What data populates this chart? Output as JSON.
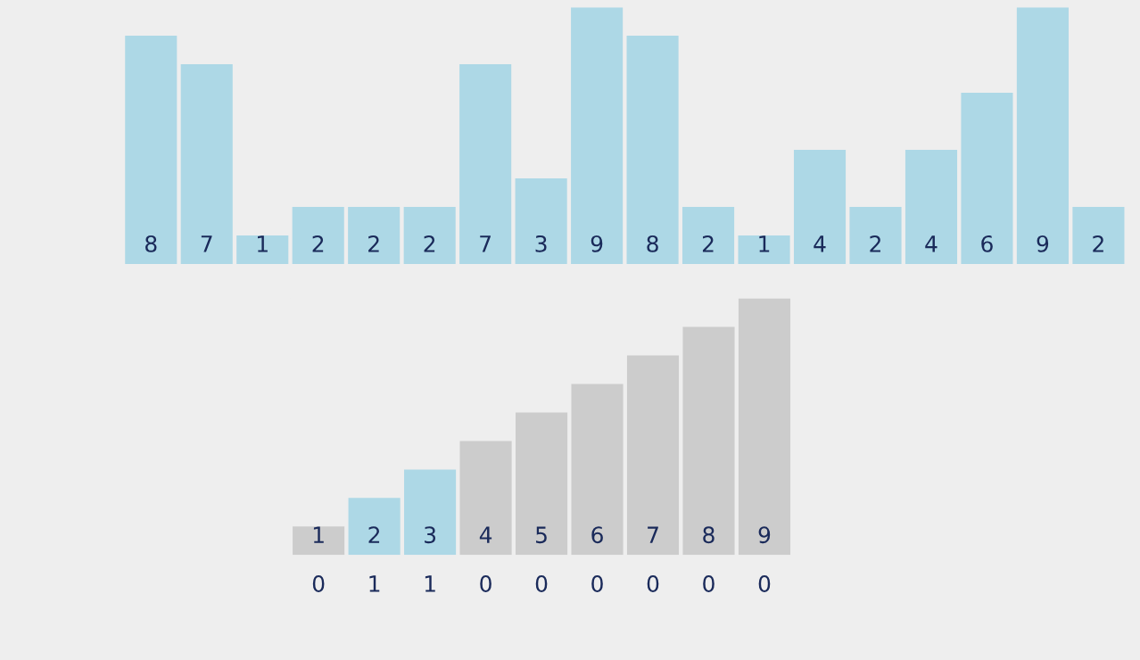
{
  "chart_data": [
    {
      "type": "bar",
      "categories": [
        null,
        null,
        null,
        null,
        null,
        null,
        null,
        null,
        null,
        null,
        null,
        null,
        null,
        null,
        null,
        null,
        null,
        null
      ],
      "series": [
        {
          "color": "#add8e6",
          "values": [
            8,
            7,
            1,
            2,
            2,
            2,
            7,
            3,
            9,
            8,
            2,
            1,
            4,
            2,
            4,
            6,
            9,
            2
          ]
        }
      ],
      "data_labels": true,
      "tick_labels": false,
      "grid": false,
      "legend": false
    },
    {
      "type": "bar",
      "categories": [
        "0",
        "1",
        "1",
        "0",
        "0",
        "0",
        "0",
        "0",
        "0"
      ],
      "series": [
        {
          "colors": [
            "#cccccc",
            "#add8e6",
            "#add8e6",
            "#cccccc",
            "#cccccc",
            "#cccccc",
            "#cccccc",
            "#cccccc",
            "#cccccc"
          ],
          "values": [
            1,
            2,
            3,
            4,
            5,
            6,
            7,
            8,
            9
          ]
        }
      ],
      "data_labels": true,
      "tick_labels": "x",
      "grid": false,
      "legend": false
    }
  ]
}
